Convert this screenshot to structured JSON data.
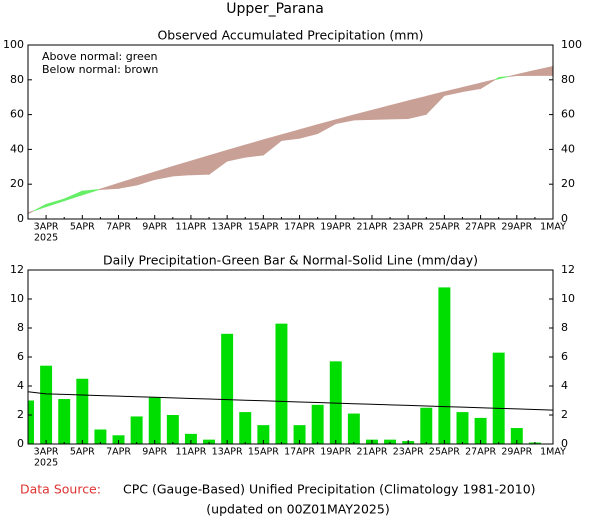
{
  "title": "Upper_Parana",
  "chart_data": [
    {
      "type": "area",
      "title": "Observed Accumulated Precipitation (mm)",
      "annotations": [
        "Above normal: green",
        "Below normal: brown"
      ],
      "categories": [
        null,
        "3APR",
        null,
        "5APR",
        null,
        "7APR",
        null,
        "9APR",
        null,
        "11APR",
        null,
        "13APR",
        null,
        "15APR",
        null,
        "17APR",
        null,
        "19APR",
        null,
        "21APR",
        null,
        "23APR",
        null,
        "25APR",
        null,
        "27APR",
        null,
        "29APR",
        null,
        "1MAY"
      ],
      "x_sublabel": "2025",
      "above_color": "#66ee66",
      "below_color": "#c9a096",
      "series": [
        {
          "values": [
            3.0,
            8.4,
            11.5,
            16.0,
            17.0,
            17.6,
            19.5,
            22.7,
            24.7,
            25.4,
            25.7,
            33.3,
            35.5,
            36.8,
            45.1,
            46.4,
            49.1,
            54.8,
            56.9,
            57.2,
            57.5,
            57.7,
            60.2,
            71.0,
            73.2,
            75.0,
            81.3,
            82.4,
            82.5,
            82.5
          ]
        },
        {
          "values": [
            3.6,
            7.1,
            10.5,
            13.9,
            17.2,
            20.5,
            23.8,
            27.0,
            30.2,
            33.3,
            36.4,
            39.5,
            42.5,
            45.5,
            48.4,
            51.3,
            54.2,
            57.0,
            59.8,
            62.5,
            65.2,
            67.9,
            70.5,
            73.1,
            75.6,
            78.1,
            80.6,
            83.0,
            85.4,
            87.7
          ]
        }
      ],
      "ylim": [
        0,
        100
      ],
      "yticks": [
        0,
        20,
        40,
        60,
        80,
        100
      ]
    },
    {
      "type": "bar",
      "title": "Daily Precipitation-Green Bar & Normal-Solid Line (mm/day)",
      "categories": [
        null,
        "3APR",
        null,
        "5APR",
        null,
        "7APR",
        null,
        "9APR",
        null,
        "11APR",
        null,
        "13APR",
        null,
        "15APR",
        null,
        "17APR",
        null,
        "19APR",
        null,
        "21APR",
        null,
        "23APR",
        null,
        "25APR",
        null,
        "27APR",
        null,
        "29APR",
        null,
        "1MAY"
      ],
      "x_sublabel": "2025",
      "series": [
        {
          "color": "#00dd00",
          "values": [
            3.0,
            5.4,
            3.1,
            4.5,
            1.0,
            0.6,
            1.9,
            3.2,
            2.0,
            0.7,
            0.3,
            7.6,
            2.2,
            1.3,
            8.3,
            1.3,
            2.7,
            5.7,
            2.1,
            0.3,
            0.3,
            0.2,
            2.5,
            10.8,
            2.2,
            1.8,
            6.3,
            1.1,
            0.1,
            null
          ]
        },
        {
          "color": "#000000",
          "values": [
            3.6,
            3.46,
            3.42,
            3.38,
            3.34,
            3.3,
            3.26,
            3.22,
            3.18,
            3.14,
            3.1,
            3.06,
            3.02,
            2.98,
            2.94,
            2.9,
            2.86,
            2.82,
            2.78,
            2.74,
            2.7,
            2.66,
            2.62,
            2.58,
            2.54,
            2.5,
            2.46,
            2.42,
            2.38,
            2.34
          ]
        }
      ],
      "ylim": [
        0,
        12
      ],
      "yticks": [
        0,
        2,
        4,
        6,
        8,
        10,
        12
      ]
    }
  ],
  "footer": {
    "source_label": "Data Source:",
    "source": "CPC (Gauge-Based) Unified Precipitation (Climatology 1981-2010)",
    "updated": "(updated on 00Z01MAY2025)"
  }
}
